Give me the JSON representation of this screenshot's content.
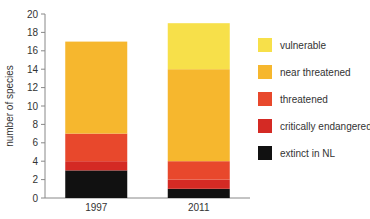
{
  "chart_data": {
    "type": "bar",
    "stacked": true,
    "legend": "right",
    "y_label": "number of species",
    "categories": [
      "1997",
      "2011"
    ],
    "ylim": [
      0,
      20
    ],
    "yticks": [
      0,
      2,
      4,
      6,
      8,
      10,
      12,
      14,
      16,
      18,
      20
    ],
    "series": [
      {
        "name": "extinct in NL",
        "color": "#111111",
        "values": [
          3,
          1
        ]
      },
      {
        "name": "critically endangered",
        "color": "#d42a24",
        "values": [
          1,
          1
        ]
      },
      {
        "name": "threatened",
        "color": "#e8482c",
        "values": [
          3,
          2
        ]
      },
      {
        "name": "near threatened",
        "color": "#f6b72e",
        "values": [
          10,
          10
        ]
      },
      {
        "name": "vulnerable",
        "color": "#f7e04a",
        "values": [
          0,
          5
        ]
      }
    ]
  }
}
